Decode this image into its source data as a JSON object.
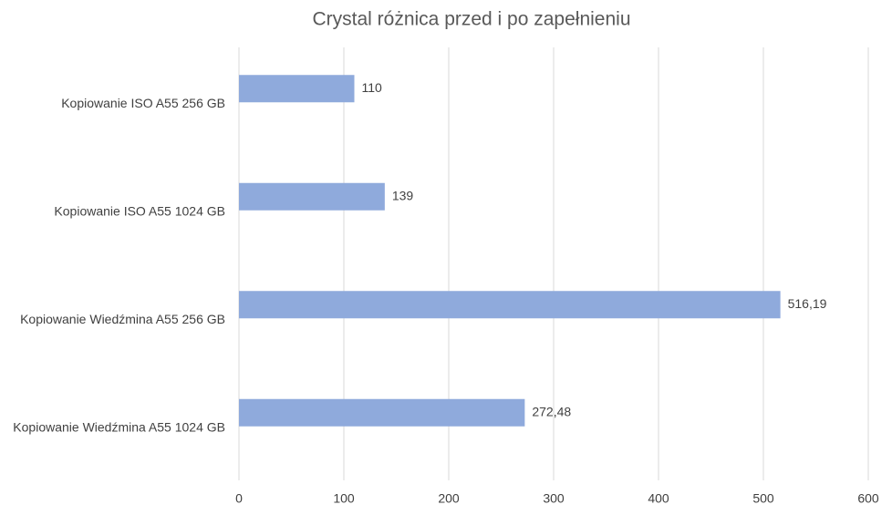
{
  "chart_data": {
    "type": "bar",
    "orientation": "horizontal",
    "title": "Crystal różnica przed i po zapełnieniu",
    "categories": [
      "Kopiowanie ISO A55 256 GB",
      "Kopiowanie ISO A55 1024 GB",
      "Kopiowanie Wiedźmina A55 256 GB",
      "Kopiowanie Wiedźmina A55 1024 GB"
    ],
    "values": [
      110,
      139,
      516.19,
      272.48
    ],
    "value_labels": [
      "110",
      "139",
      "516,19",
      "272,48"
    ],
    "color": "#8faadc",
    "xlim": [
      0,
      600
    ],
    "xticks": [
      0,
      100,
      200,
      300,
      400,
      500,
      600
    ],
    "grid": true
  }
}
